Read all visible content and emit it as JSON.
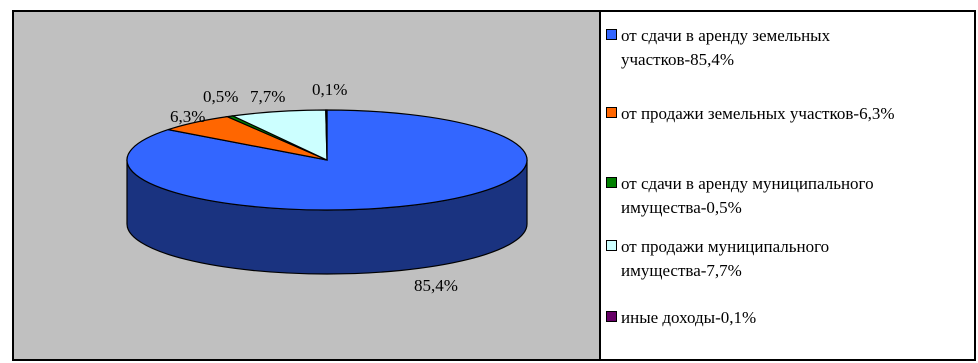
{
  "chart_data": {
    "type": "pie",
    "style": "3d",
    "slices": [
      {
        "label": "от сдачи в аренду земельных участков-85,4%",
        "value": 85.4,
        "data_label": "85,4%",
        "color": "#3366ff",
        "dark": "#1a3380"
      },
      {
        "label": "от продажи земельных участков-6,3%",
        "value": 6.3,
        "data_label": "6,3%",
        "color": "#ff6600",
        "dark": "#803300"
      },
      {
        "label": "от сдачи в аренду муниципального имущества-0,5%",
        "value": 0.5,
        "data_label": "0,5%",
        "color": "#008000",
        "dark": "#004000"
      },
      {
        "label": "от продажи муниципального имущества-7,7%",
        "value": 7.7,
        "data_label": "7,7%",
        "color": "#ccffff",
        "dark": "#668080"
      },
      {
        "label": "иные доходы-0,1%",
        "value": 0.1,
        "data_label": "0,1%",
        "color": "#660066",
        "dark": "#330033"
      }
    ],
    "legend_position": "right"
  }
}
